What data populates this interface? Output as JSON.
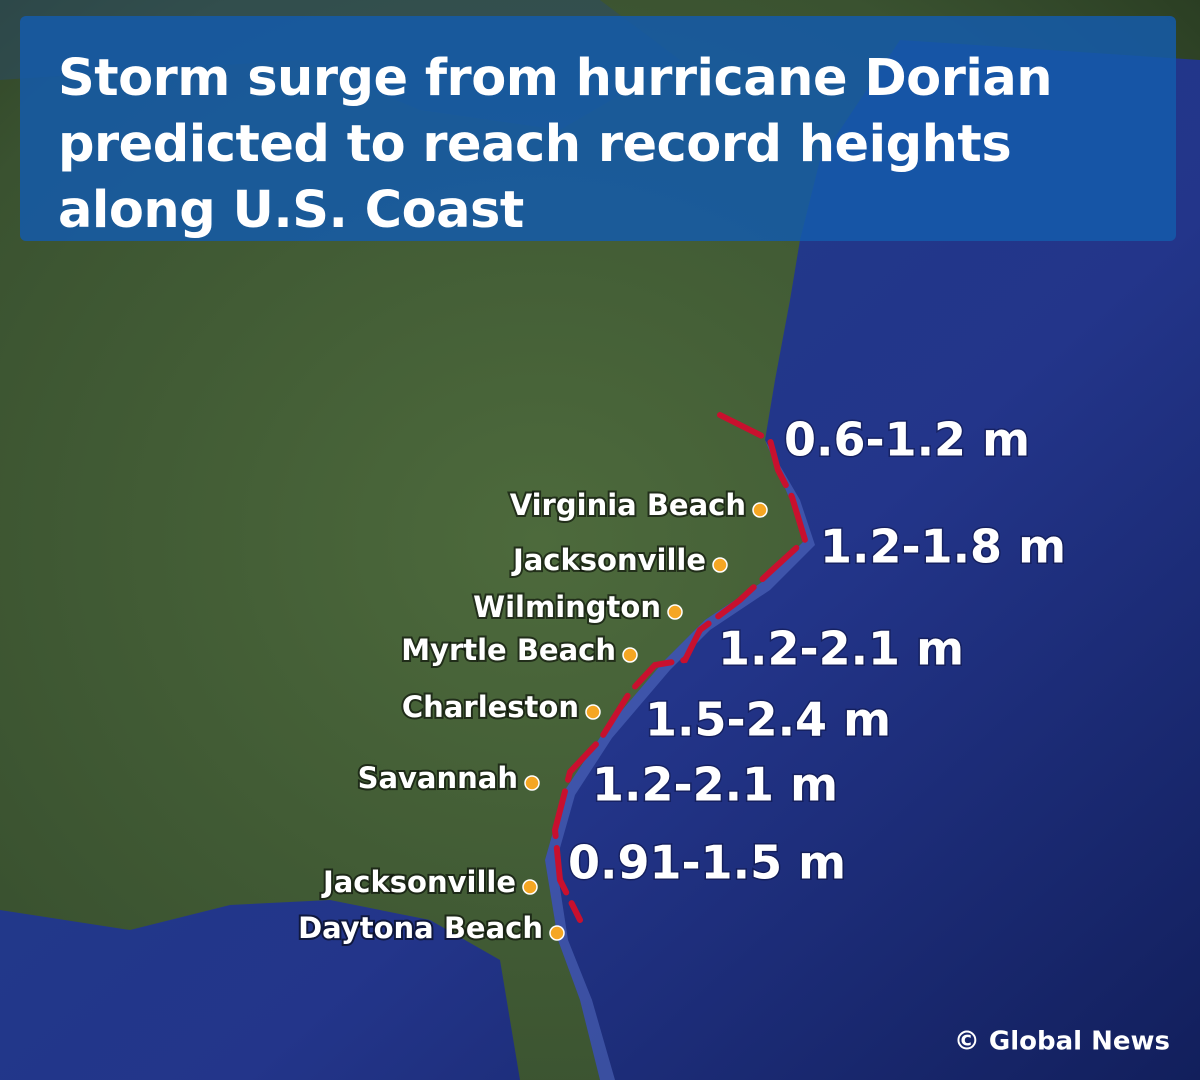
{
  "title": "Storm surge from hurricane Dorian predicted to reach record heights along U.S. Coast",
  "cities": [
    {
      "name": "Virginia Beach"
    },
    {
      "name": "Jacksonville"
    },
    {
      "name": "Wilmington"
    },
    {
      "name": "Myrtle Beach"
    },
    {
      "name": "Charleston"
    },
    {
      "name": "Savannah"
    },
    {
      "name": "Jacksonville"
    },
    {
      "name": "Daytona Beach"
    }
  ],
  "surge_zones": [
    {
      "label": "0.6-1.2 m"
    },
    {
      "label": "1.2-1.8 m"
    },
    {
      "label": "1.2-2.1 m"
    },
    {
      "label": "1.5-2.4 m"
    },
    {
      "label": "1.2-2.1 m"
    },
    {
      "label": "0.91-1.5 m"
    }
  ],
  "credit": "© Global News"
}
